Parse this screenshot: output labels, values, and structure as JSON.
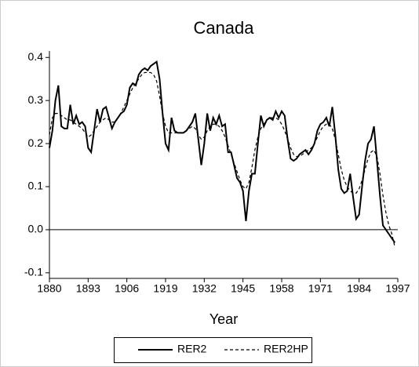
{
  "chart_data": {
    "type": "line",
    "title": "Canada",
    "xlabel": "Year",
    "x": [
      1880,
      1881,
      1882,
      1883,
      1884,
      1885,
      1886,
      1887,
      1888,
      1889,
      1890,
      1891,
      1892,
      1893,
      1894,
      1895,
      1896,
      1897,
      1898,
      1899,
      1900,
      1901,
      1902,
      1903,
      1904,
      1905,
      1906,
      1907,
      1908,
      1909,
      1910,
      1911,
      1912,
      1913,
      1914,
      1915,
      1916,
      1917,
      1918,
      1919,
      1920,
      1921,
      1922,
      1923,
      1924,
      1925,
      1926,
      1927,
      1928,
      1929,
      1930,
      1931,
      1932,
      1933,
      1934,
      1935,
      1936,
      1937,
      1938,
      1939,
      1940,
      1941,
      1942,
      1943,
      1944,
      1945,
      1946,
      1947,
      1948,
      1949,
      1950,
      1951,
      1952,
      1953,
      1954,
      1955,
      1956,
      1957,
      1958,
      1959,
      1960,
      1961,
      1962,
      1963,
      1964,
      1965,
      1966,
      1967,
      1968,
      1969,
      1970,
      1971,
      1972,
      1973,
      1974,
      1975,
      1976,
      1977,
      1978,
      1979,
      1980,
      1981,
      1982,
      1983,
      1984,
      1985,
      1986,
      1987,
      1988,
      1989,
      1990,
      1991,
      1992,
      1993,
      1994,
      1995,
      1996
    ],
    "series": [
      {
        "name": "RER2",
        "color": "#000000",
        "dashed": false,
        "values": [
          0.19,
          0.23,
          0.3,
          0.335,
          0.24,
          0.235,
          0.235,
          0.29,
          0.245,
          0.265,
          0.245,
          0.25,
          0.24,
          0.19,
          0.18,
          0.23,
          0.28,
          0.25,
          0.28,
          0.285,
          0.26,
          0.235,
          0.25,
          0.26,
          0.27,
          0.275,
          0.29,
          0.33,
          0.34,
          0.335,
          0.36,
          0.37,
          0.375,
          0.37,
          0.38,
          0.385,
          0.39,
          0.35,
          0.27,
          0.2,
          0.185,
          0.26,
          0.23,
          0.225,
          0.225,
          0.225,
          0.23,
          0.24,
          0.25,
          0.27,
          0.21,
          0.15,
          0.2,
          0.27,
          0.23,
          0.26,
          0.245,
          0.265,
          0.24,
          0.245,
          0.18,
          0.18,
          0.15,
          0.12,
          0.11,
          0.09,
          0.02,
          0.09,
          0.13,
          0.13,
          0.2,
          0.265,
          0.24,
          0.255,
          0.26,
          0.255,
          0.275,
          0.26,
          0.275,
          0.265,
          0.21,
          0.165,
          0.16,
          0.165,
          0.175,
          0.18,
          0.185,
          0.175,
          0.185,
          0.2,
          0.23,
          0.245,
          0.25,
          0.26,
          0.24,
          0.285,
          0.22,
          0.14,
          0.095,
          0.085,
          0.09,
          0.13,
          0.075,
          0.025,
          0.035,
          0.1,
          0.16,
          0.2,
          0.21,
          0.24,
          0.16,
          0.08,
          0.01,
          0.0,
          -0.01,
          -0.02,
          -0.03
        ]
      },
      {
        "name": "RER2HP",
        "color": "#000000",
        "dashed": true,
        "values": [
          0.22,
          0.26,
          0.27,
          0.27,
          0.265,
          0.26,
          0.255,
          0.255,
          0.25,
          0.245,
          0.24,
          0.235,
          0.225,
          0.215,
          0.22,
          0.23,
          0.24,
          0.25,
          0.255,
          0.26,
          0.255,
          0.25,
          0.25,
          0.26,
          0.27,
          0.285,
          0.3,
          0.315,
          0.33,
          0.34,
          0.35,
          0.36,
          0.365,
          0.365,
          0.365,
          0.36,
          0.345,
          0.31,
          0.27,
          0.24,
          0.225,
          0.225,
          0.225,
          0.225,
          0.225,
          0.225,
          0.23,
          0.235,
          0.24,
          0.235,
          0.22,
          0.21,
          0.215,
          0.23,
          0.24,
          0.245,
          0.245,
          0.24,
          0.23,
          0.215,
          0.195,
          0.175,
          0.155,
          0.135,
          0.115,
          0.1,
          0.095,
          0.11,
          0.145,
          0.185,
          0.215,
          0.235,
          0.245,
          0.255,
          0.26,
          0.26,
          0.26,
          0.255,
          0.245,
          0.23,
          0.21,
          0.19,
          0.175,
          0.17,
          0.17,
          0.175,
          0.18,
          0.185,
          0.19,
          0.2,
          0.215,
          0.23,
          0.24,
          0.245,
          0.245,
          0.235,
          0.21,
          0.175,
          0.14,
          0.115,
          0.1,
          0.09,
          0.085,
          0.085,
          0.095,
          0.115,
          0.14,
          0.165,
          0.18,
          0.185,
          0.17,
          0.13,
          0.08,
          0.04,
          0.01,
          -0.01,
          -0.04
        ]
      }
    ],
    "xlim": [
      1880,
      1997
    ],
    "xticks": [
      1880,
      1893,
      1906,
      1919,
      1932,
      1945,
      1958,
      1971,
      1984,
      1997
    ],
    "ylim": [
      -0.113,
      0.415
    ],
    "yticks": [
      0.4,
      0.3,
      0.2,
      0.1,
      {
        "value": 0,
        "label": "0.0"
      },
      -0.1
    ],
    "zero_line": true,
    "legend": "bottom"
  }
}
